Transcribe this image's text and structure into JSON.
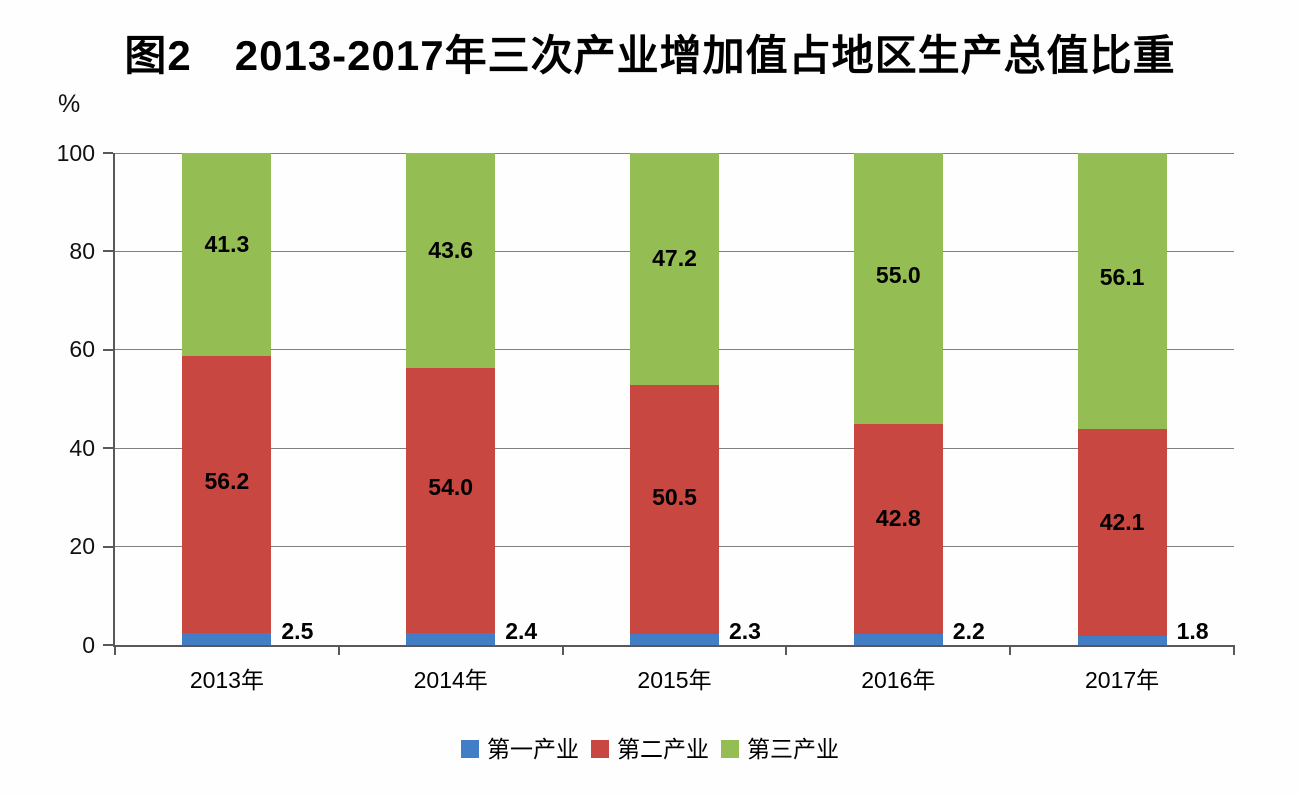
{
  "title": "图2　2013-2017年三次产业增加值占地区生产总值比重",
  "y_axis_unit_label": "%",
  "chart_data": {
    "type": "bar",
    "stacked": true,
    "title": "图2 2013-2017年三次产业增加值占地区生产总值比重",
    "categories": [
      "2013年",
      "2014年",
      "2015年",
      "2016年",
      "2017年"
    ],
    "series": [
      {
        "name": "第一产业",
        "color": "#417EC6",
        "values": [
          2.5,
          2.4,
          2.3,
          2.2,
          1.8
        ],
        "labels_outside": true
      },
      {
        "name": "第二产业",
        "color": "#C84841",
        "values": [
          56.2,
          54.0,
          50.5,
          42.8,
          42.1
        ],
        "labels_outside": false
      },
      {
        "name": "第三产业",
        "color": "#94BE53",
        "values": [
          41.3,
          43.6,
          47.2,
          55.0,
          56.1
        ],
        "labels_outside": false
      }
    ],
    "xlabel": "",
    "ylabel": "%",
    "ylim": [
      0,
      100
    ],
    "yticks": [
      0,
      20,
      40,
      60,
      80,
      100
    ],
    "grid": true,
    "legend_position": "bottom",
    "value_format": "one_decimal"
  },
  "style": {
    "grid_color": "#808080",
    "axis_color": "#595959",
    "background": "#FEFEFE",
    "label_color": "#000000"
  }
}
